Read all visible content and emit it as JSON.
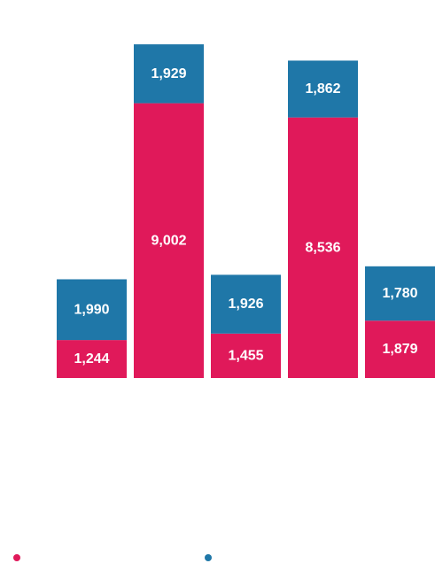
{
  "chart_data": {
    "type": "bar",
    "stacked": true,
    "categories": [
      "",
      "",
      "",
      "",
      ""
    ],
    "series": [
      {
        "values": [
          1244,
          9002,
          1455,
          8536,
          1879
        ],
        "color": "#e0195a"
      },
      {
        "values": [
          1990,
          1929,
          1926,
          1862,
          1780
        ],
        "color": "#1f77a8"
      }
    ],
    "labels": [
      [
        "1,244",
        "9,002",
        "1,455",
        "8,536",
        "1,879"
      ],
      [
        "1,990",
        "1,929",
        "1,926",
        "1,862",
        "1,780"
      ]
    ],
    "ylim": [
      0,
      11600
    ],
    "legend": "bottom-left",
    "grid": false
  }
}
